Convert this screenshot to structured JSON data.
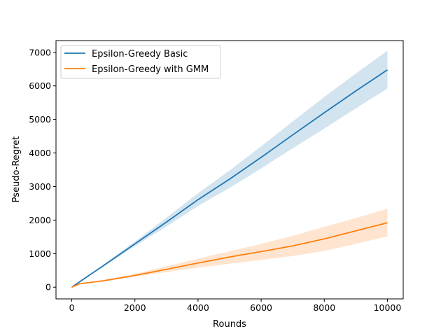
{
  "chart_data": {
    "type": "line",
    "title": "",
    "xlabel": "Rounds",
    "ylabel": "Pseudo-Regret",
    "xlim": [
      -500,
      10500
    ],
    "ylim": [
      -350,
      7350
    ],
    "x_ticks": [
      0,
      2000,
      4000,
      6000,
      8000,
      10000
    ],
    "y_ticks": [
      0,
      1000,
      2000,
      3000,
      4000,
      5000,
      6000,
      7000
    ],
    "grid": false,
    "legend_position": "top-left",
    "series": [
      {
        "name": "Epsilon-Greedy Basic",
        "color": "#1f77b4",
        "band_opacity": 0.2,
        "x": [
          0,
          1000,
          2000,
          3000,
          4000,
          5000,
          6000,
          7000,
          8000,
          9000,
          10000
        ],
        "values": [
          0,
          640,
          1290,
          1940,
          2610,
          3220,
          3870,
          4540,
          5200,
          5850,
          6480
        ],
        "lower": [
          0,
          610,
          1220,
          1810,
          2420,
          2960,
          3540,
          4140,
          4730,
          5330,
          5920
        ],
        "upper": [
          0,
          670,
          1360,
          2070,
          2800,
          3480,
          4200,
          4940,
          5670,
          6370,
          7050
        ]
      },
      {
        "name": "Epsilon-Greedy with GMM",
        "color": "#ff7f0e",
        "band_opacity": 0.2,
        "x": [
          0,
          250,
          1000,
          2000,
          3000,
          4000,
          5000,
          6000,
          7000,
          8000,
          9000,
          10000
        ],
        "values": [
          0,
          100,
          190,
          350,
          530,
          720,
          900,
          1060,
          1230,
          1440,
          1680,
          1920
        ],
        "lower": [
          0,
          90,
          170,
          310,
          450,
          580,
          700,
          810,
          930,
          1080,
          1290,
          1510
        ],
        "upper": [
          0,
          110,
          215,
          400,
          620,
          850,
          1070,
          1290,
          1530,
          1800,
          2060,
          2340
        ]
      }
    ]
  }
}
